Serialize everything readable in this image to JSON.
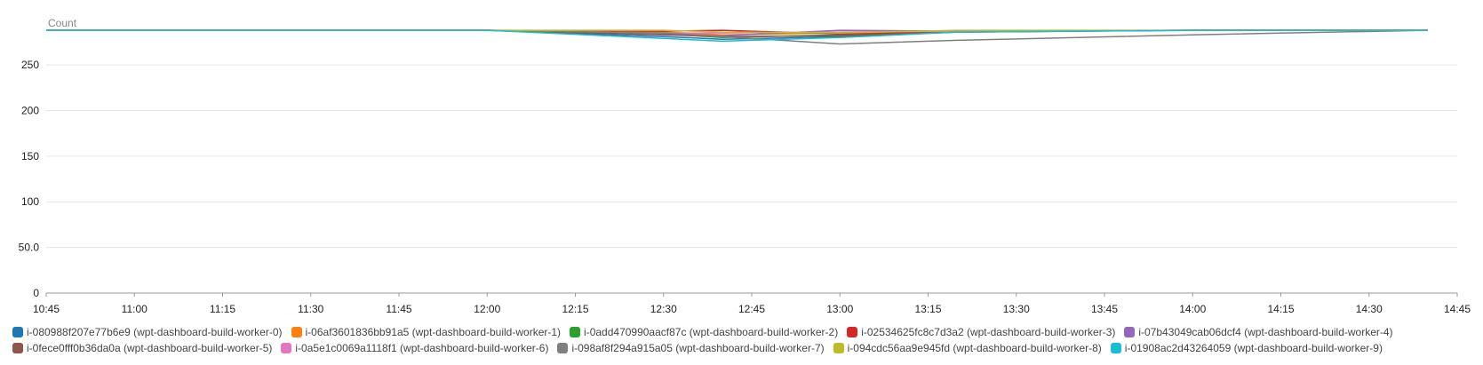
{
  "chart_data": {
    "type": "line",
    "unit_label": "Count",
    "ylim": [
      0,
      290
    ],
    "y_ticks": [
      "0",
      "50.0",
      "100",
      "150",
      "200",
      "250"
    ],
    "y_tick_values": [
      0,
      50,
      100,
      150,
      200,
      250
    ],
    "x_ticks": [
      "10:45",
      "11:00",
      "11:15",
      "11:30",
      "11:45",
      "12:00",
      "12:15",
      "12:30",
      "12:45",
      "13:00",
      "13:15",
      "13:30",
      "13:45",
      "14:00",
      "14:15",
      "14:30",
      "14:45"
    ],
    "x_range_minutes": [
      645,
      885
    ],
    "grid": true,
    "legend_position": "bottom",
    "series": [
      {
        "name": "i-080988f207e77b6e9 (wpt-dashboard-build-worker-0)",
        "color": "#1f77b4",
        "points": [
          [
            "10:45",
            288
          ],
          [
            "11:45",
            288
          ],
          [
            "12:00",
            288
          ],
          [
            "12:30",
            281
          ],
          [
            "12:40",
            278
          ],
          [
            "13:00",
            281
          ],
          [
            "13:20",
            286
          ],
          [
            "14:00",
            288
          ],
          [
            "14:40",
            288
          ]
        ]
      },
      {
        "name": "i-06af3601836bb91a5 (wpt-dashboard-build-worker-1)",
        "color": "#ff7f0e",
        "points": [
          [
            "10:45",
            288
          ],
          [
            "11:45",
            288
          ],
          [
            "12:00",
            288
          ],
          [
            "12:30",
            286
          ],
          [
            "12:40",
            283
          ],
          [
            "13:00",
            285
          ],
          [
            "13:20",
            287
          ],
          [
            "14:00",
            288
          ],
          [
            "14:40",
            288
          ]
        ]
      },
      {
        "name": "i-0add470990aacf87c (wpt-dashboard-build-worker-2)",
        "color": "#2ca02c",
        "points": [
          [
            "10:45",
            288
          ],
          [
            "11:45",
            288
          ],
          [
            "12:00",
            288
          ],
          [
            "12:30",
            284
          ],
          [
            "12:40",
            280
          ],
          [
            "13:00",
            283
          ],
          [
            "13:20",
            287
          ],
          [
            "14:00",
            288
          ],
          [
            "14:40",
            288
          ]
        ]
      },
      {
        "name": "i-02534625fc8c7d3a2 (wpt-dashboard-build-worker-3)",
        "color": "#d62728",
        "points": [
          [
            "10:45",
            288
          ],
          [
            "11:45",
            288
          ],
          [
            "12:00",
            288
          ],
          [
            "12:30",
            287
          ],
          [
            "12:40",
            288
          ],
          [
            "13:00",
            284
          ],
          [
            "13:20",
            287
          ],
          [
            "14:00",
            288
          ],
          [
            "14:40",
            288
          ]
        ]
      },
      {
        "name": "i-07b43049cab06dcf4 (wpt-dashboard-build-worker-4)",
        "color": "#9467bd",
        "points": [
          [
            "10:45",
            288
          ],
          [
            "11:45",
            288
          ],
          [
            "12:00",
            288
          ],
          [
            "12:30",
            284
          ],
          [
            "12:40",
            282
          ],
          [
            "13:00",
            288
          ],
          [
            "13:20",
            287
          ],
          [
            "14:00",
            288
          ],
          [
            "14:40",
            288
          ]
        ]
      },
      {
        "name": "i-0fece0fff0b36da0a (wpt-dashboard-build-worker-5)",
        "color": "#8c564b",
        "points": [
          [
            "10:45",
            288
          ],
          [
            "11:45",
            288
          ],
          [
            "12:00",
            288
          ],
          [
            "12:30",
            283
          ],
          [
            "12:40",
            281
          ],
          [
            "13:00",
            282
          ],
          [
            "13:20",
            286
          ],
          [
            "14:00",
            288
          ],
          [
            "14:40",
            288
          ]
        ]
      },
      {
        "name": "i-0a5e1c0069a1118f1 (wpt-dashboard-build-worker-6)",
        "color": "#e377c2",
        "points": [
          [
            "10:45",
            288
          ],
          [
            "11:45",
            288
          ],
          [
            "12:00",
            288
          ],
          [
            "12:30",
            285
          ],
          [
            "12:40",
            285
          ],
          [
            "13:00",
            286
          ],
          [
            "13:20",
            287
          ],
          [
            "14:00",
            288
          ],
          [
            "14:40",
            288
          ]
        ]
      },
      {
        "name": "i-098af8f294a915a05 (wpt-dashboard-build-worker-7)",
        "color": "#7f7f7f",
        "points": [
          [
            "10:45",
            288
          ],
          [
            "11:45",
            288
          ],
          [
            "12:00",
            288
          ],
          [
            "12:30",
            285
          ],
          [
            "12:40",
            281
          ],
          [
            "13:00",
            273
          ],
          [
            "13:20",
            277
          ],
          [
            "14:00",
            283
          ],
          [
            "14:40",
            288
          ]
        ]
      },
      {
        "name": "i-094cdc56aa9e945fd (wpt-dashboard-build-worker-8)",
        "color": "#bcbd22",
        "points": [
          [
            "10:45",
            288
          ],
          [
            "11:45",
            288
          ],
          [
            "12:00",
            288
          ],
          [
            "12:30",
            288
          ],
          [
            "12:40",
            286
          ],
          [
            "13:00",
            285
          ],
          [
            "13:20",
            288
          ],
          [
            "14:00",
            288
          ],
          [
            "14:40",
            288
          ]
        ]
      },
      {
        "name": "i-01908ac2d43264059 (wpt-dashboard-build-worker-9)",
        "color": "#17becf",
        "points": [
          [
            "10:45",
            288
          ],
          [
            "11:45",
            288
          ],
          [
            "12:00",
            288
          ],
          [
            "12:30",
            279
          ],
          [
            "12:40",
            276
          ],
          [
            "13:00",
            280
          ],
          [
            "13:20",
            286
          ],
          [
            "14:00",
            288
          ],
          [
            "14:40",
            288
          ]
        ]
      }
    ]
  }
}
